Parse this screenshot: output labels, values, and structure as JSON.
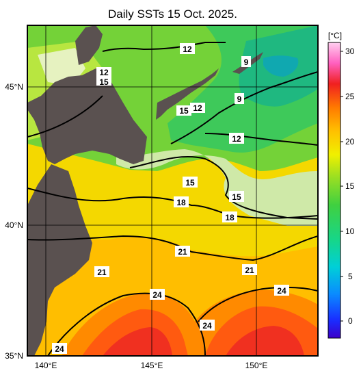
{
  "title": "Daily SSTs 15 Oct. 2025.",
  "lon_labels": [
    "140°E",
    "145°E",
    "150°E"
  ],
  "lat_labels": [
    "45°N",
    "40°N",
    "35°N"
  ],
  "colorbar": {
    "unit": "[°C]",
    "ticks": [
      "30",
      "25",
      "20",
      "15",
      "10",
      "5",
      "0"
    ]
  },
  "contour_labels": [
    "12",
    "9",
    "12",
    "15",
    "9",
    "15",
    "12",
    "12",
    "15",
    "18",
    "15",
    "18",
    "21",
    "21",
    "21",
    "24",
    "24",
    "24",
    "24"
  ],
  "colors": {
    "land": "#5a5150",
    "frame": "#000000"
  }
}
